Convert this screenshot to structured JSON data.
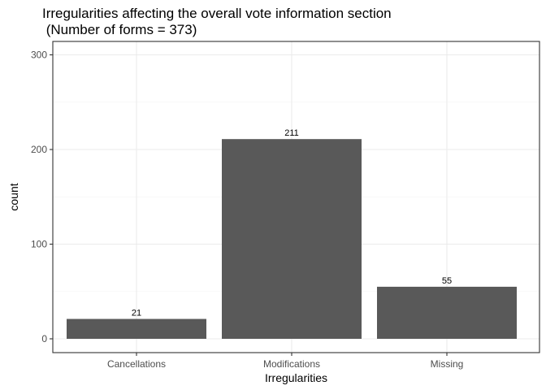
{
  "chart_data": {
    "type": "bar",
    "title_line1": "Irregularities affecting the overall vote information section",
    "title_line2": " (Number of forms = 373)",
    "xlabel": "Irregularities",
    "ylabel": "count",
    "categories": [
      "Cancellations",
      "Modifications",
      "Missing"
    ],
    "values": [
      21,
      211,
      55
    ],
    "data_labels": [
      "21",
      "211",
      "55"
    ],
    "ylim": [
      0,
      300
    ],
    "yticks": [
      0,
      100,
      200,
      300
    ],
    "ytick_labels": [
      "0",
      "100",
      "200",
      "300"
    ],
    "grid": true,
    "legend": "none",
    "bar_color": "#595959"
  }
}
